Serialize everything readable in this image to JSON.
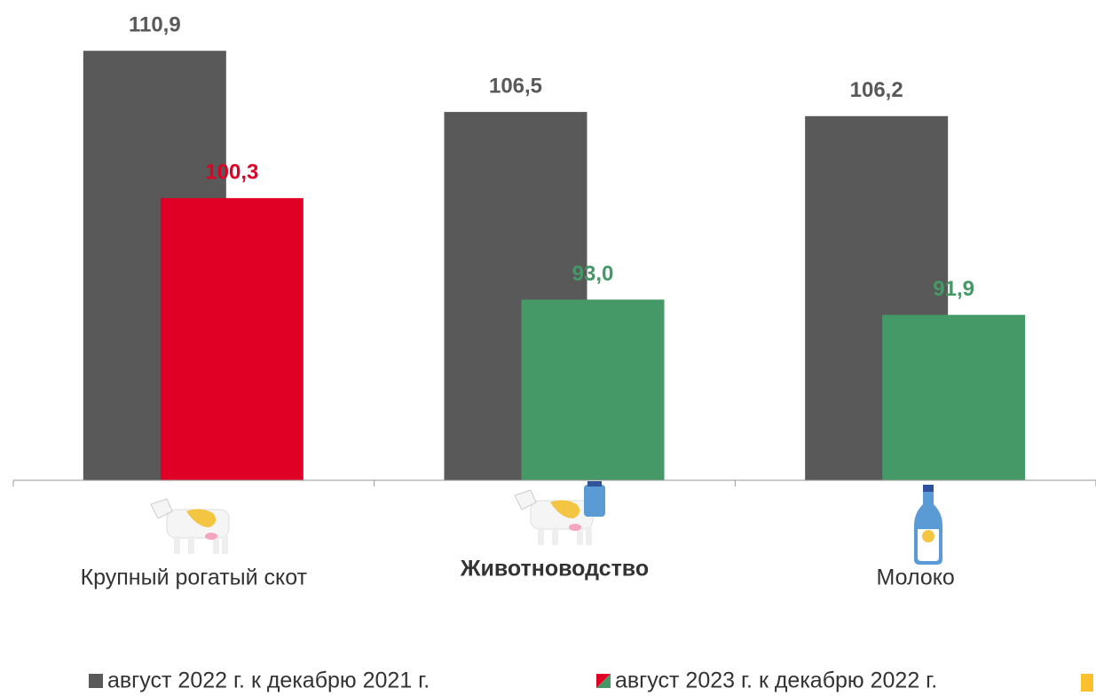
{
  "chart_data": {
    "type": "bar",
    "categories": [
      "Крупный рогатый скот",
      "Животноводство",
      "Молоко"
    ],
    "series": [
      {
        "name": "август 2022 г. к декабрю 2021 г.",
        "color": "#595959",
        "values": [
          110.9,
          106.5,
          106.2
        ],
        "value_labels": [
          "110,9",
          "106,5",
          "106,2"
        ]
      },
      {
        "name": "август 2023 г. к декабрю 2022 г.",
        "colors": [
          "#e00025",
          "#449966",
          "#449966"
        ],
        "values": [
          100.3,
          93.0,
          91.9
        ],
        "value_labels": [
          "100,3",
          "93,0",
          "91,9"
        ]
      }
    ],
    "ylim": [
      80,
      112
    ]
  }
}
